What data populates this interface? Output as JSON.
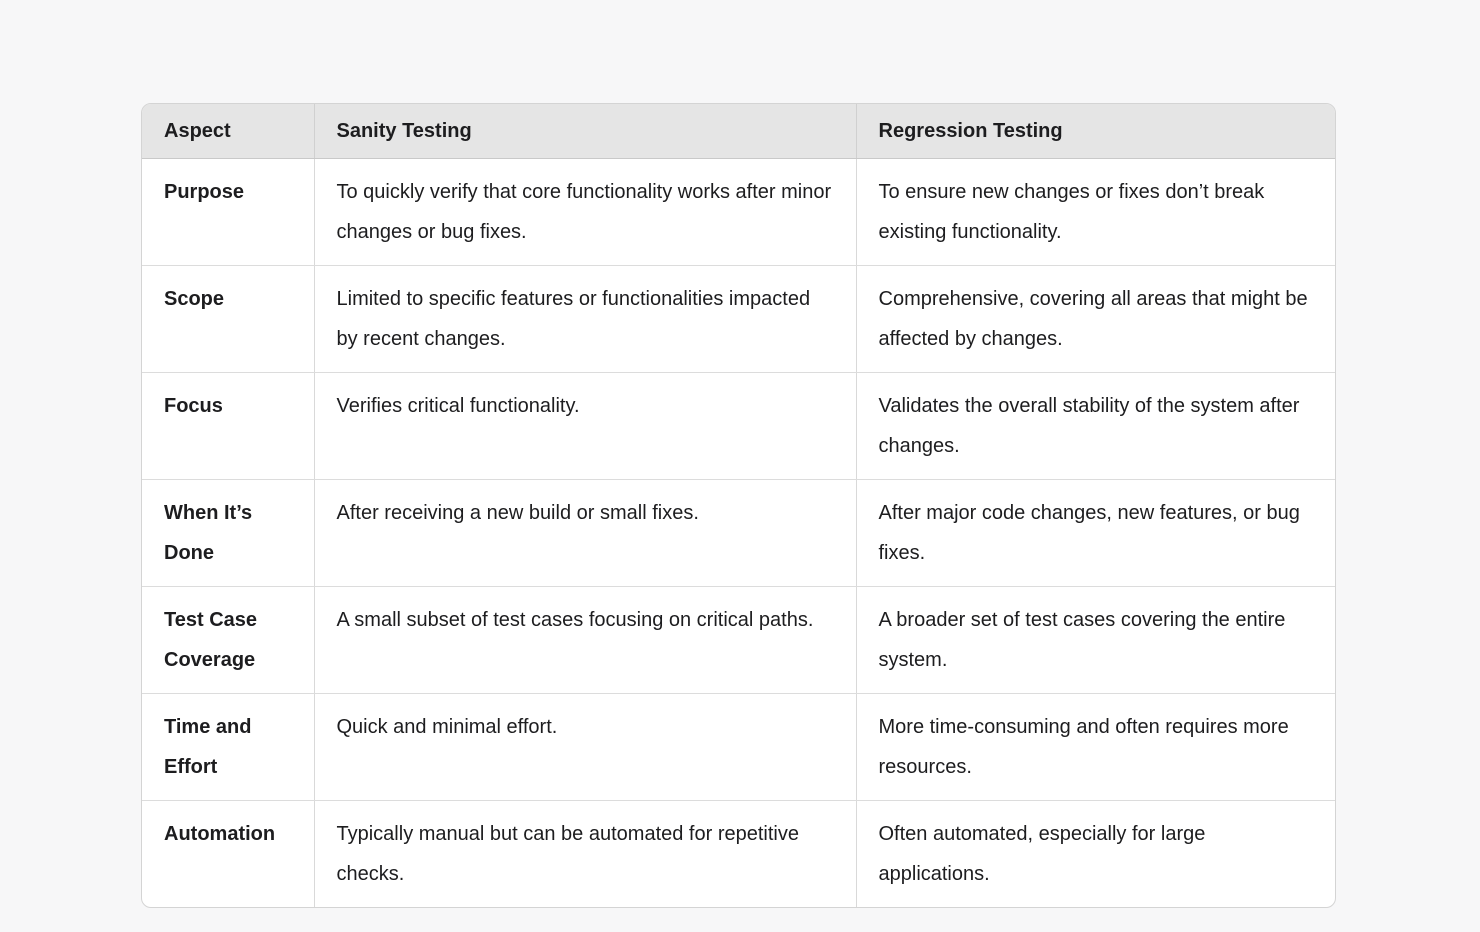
{
  "table": {
    "columns": [
      "Aspect",
      "Sanity Testing",
      "Regression Testing"
    ],
    "rows": [
      {
        "aspect": "Purpose",
        "sanity": "To quickly verify that core functionality works after minor changes or bug fixes.",
        "regression": "To ensure new changes or fixes don’t break existing functionality."
      },
      {
        "aspect": "Scope",
        "sanity": "Limited to specific features or functionalities impacted by recent changes.",
        "regression": "Comprehensive, covering all areas that might be affected by changes."
      },
      {
        "aspect": "Focus",
        "sanity": "Verifies critical functionality.",
        "regression": "Validates the overall stability of the system after changes."
      },
      {
        "aspect": "When It’s Done",
        "sanity": "After receiving a new build or small fixes.",
        "regression": "After major code changes, new features, or bug fixes."
      },
      {
        "aspect": "Test Case Coverage",
        "sanity": "A small subset of test cases focusing on critical paths.",
        "regression": "A broader set of test cases covering the entire system."
      },
      {
        "aspect": "Time and Effort",
        "sanity": "Quick and minimal effort.",
        "regression": "More time-consuming and often requires more resources."
      },
      {
        "aspect": "Automation",
        "sanity": "Typically manual but can be automated for repetitive checks.",
        "regression": "Often automated, especially for large applications."
      }
    ],
    "colors": {
      "page_background": "#f7f7f8",
      "header_background": "#e5e5e5",
      "body_background": "#ffffff",
      "border": "#d9d9d9",
      "text": "#1d1d1f"
    }
  }
}
